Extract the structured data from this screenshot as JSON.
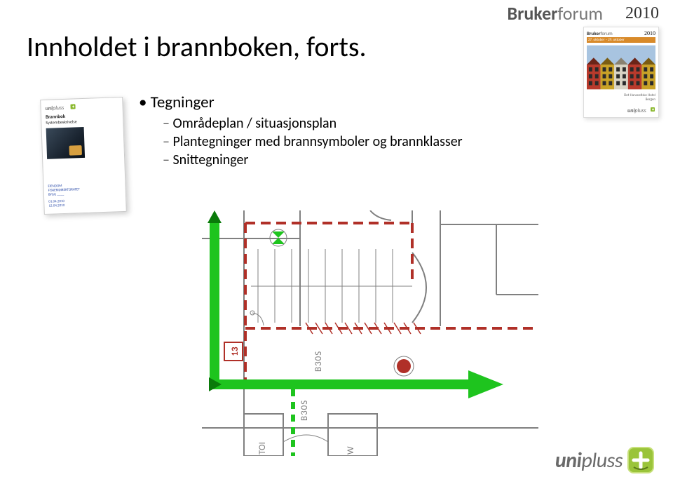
{
  "header": {
    "brand_bold": "Bruker",
    "brand_light": "forum",
    "year": "2010"
  },
  "title": "Innholdet i brannboken, forts.",
  "brochure": {
    "brand_bold": "Bruker",
    "brand_light": "forum",
    "year": "2010",
    "datebar": "27. oktober – 29. oktober",
    "location_line1": "Det Hanseatiske Hotel",
    "location_line2": "Bergen",
    "buildings": [
      {
        "color": "#b83a2c",
        "roof": "#6b2418"
      },
      {
        "color": "#c9a227",
        "roof": "#7a5c12"
      },
      {
        "color": "#d9d4c4",
        "roof": "#8a8270"
      },
      {
        "color": "#b83a2c",
        "roof": "#6b2418"
      },
      {
        "color": "#c9a227",
        "roof": "#7a5c12"
      }
    ]
  },
  "bullets": {
    "lvl1": "Tegninger",
    "sub1": "Områdeplan / situasjonsplan",
    "sub2": "Plantegninger med brannsymboler og brannklasser",
    "sub3": "Snittegninger"
  },
  "doc_thumb": {
    "logo_text": "unipluss",
    "title1": "Brannbok",
    "title2": "Systembeskrivelse",
    "meta1": "EIENDOM",
    "meta2": "FISKERIDIREKTORATET",
    "meta3": "BYGG ____",
    "meta4": "01.04.2010",
    "meta5": "12.04.2010"
  },
  "plan": {
    "colors": {
      "wall": "#808080",
      "fire_wall": "#b03028",
      "escape": "#1ec41e",
      "escape_dark": "#0a7a0a",
      "hatch": "#b03028"
    },
    "labels": {
      "b30s_1": "B30S",
      "b30s_2": "B30S",
      "toi": "TOI",
      "w": "W",
      "exit_box": "13"
    },
    "fontsize": 13,
    "line_widths": {
      "wall": 2,
      "fire_wall": 4,
      "escape": 14,
      "hatch": 1.5
    }
  },
  "footer_logo": {
    "uni": "uni",
    "pluss": "pluss"
  }
}
